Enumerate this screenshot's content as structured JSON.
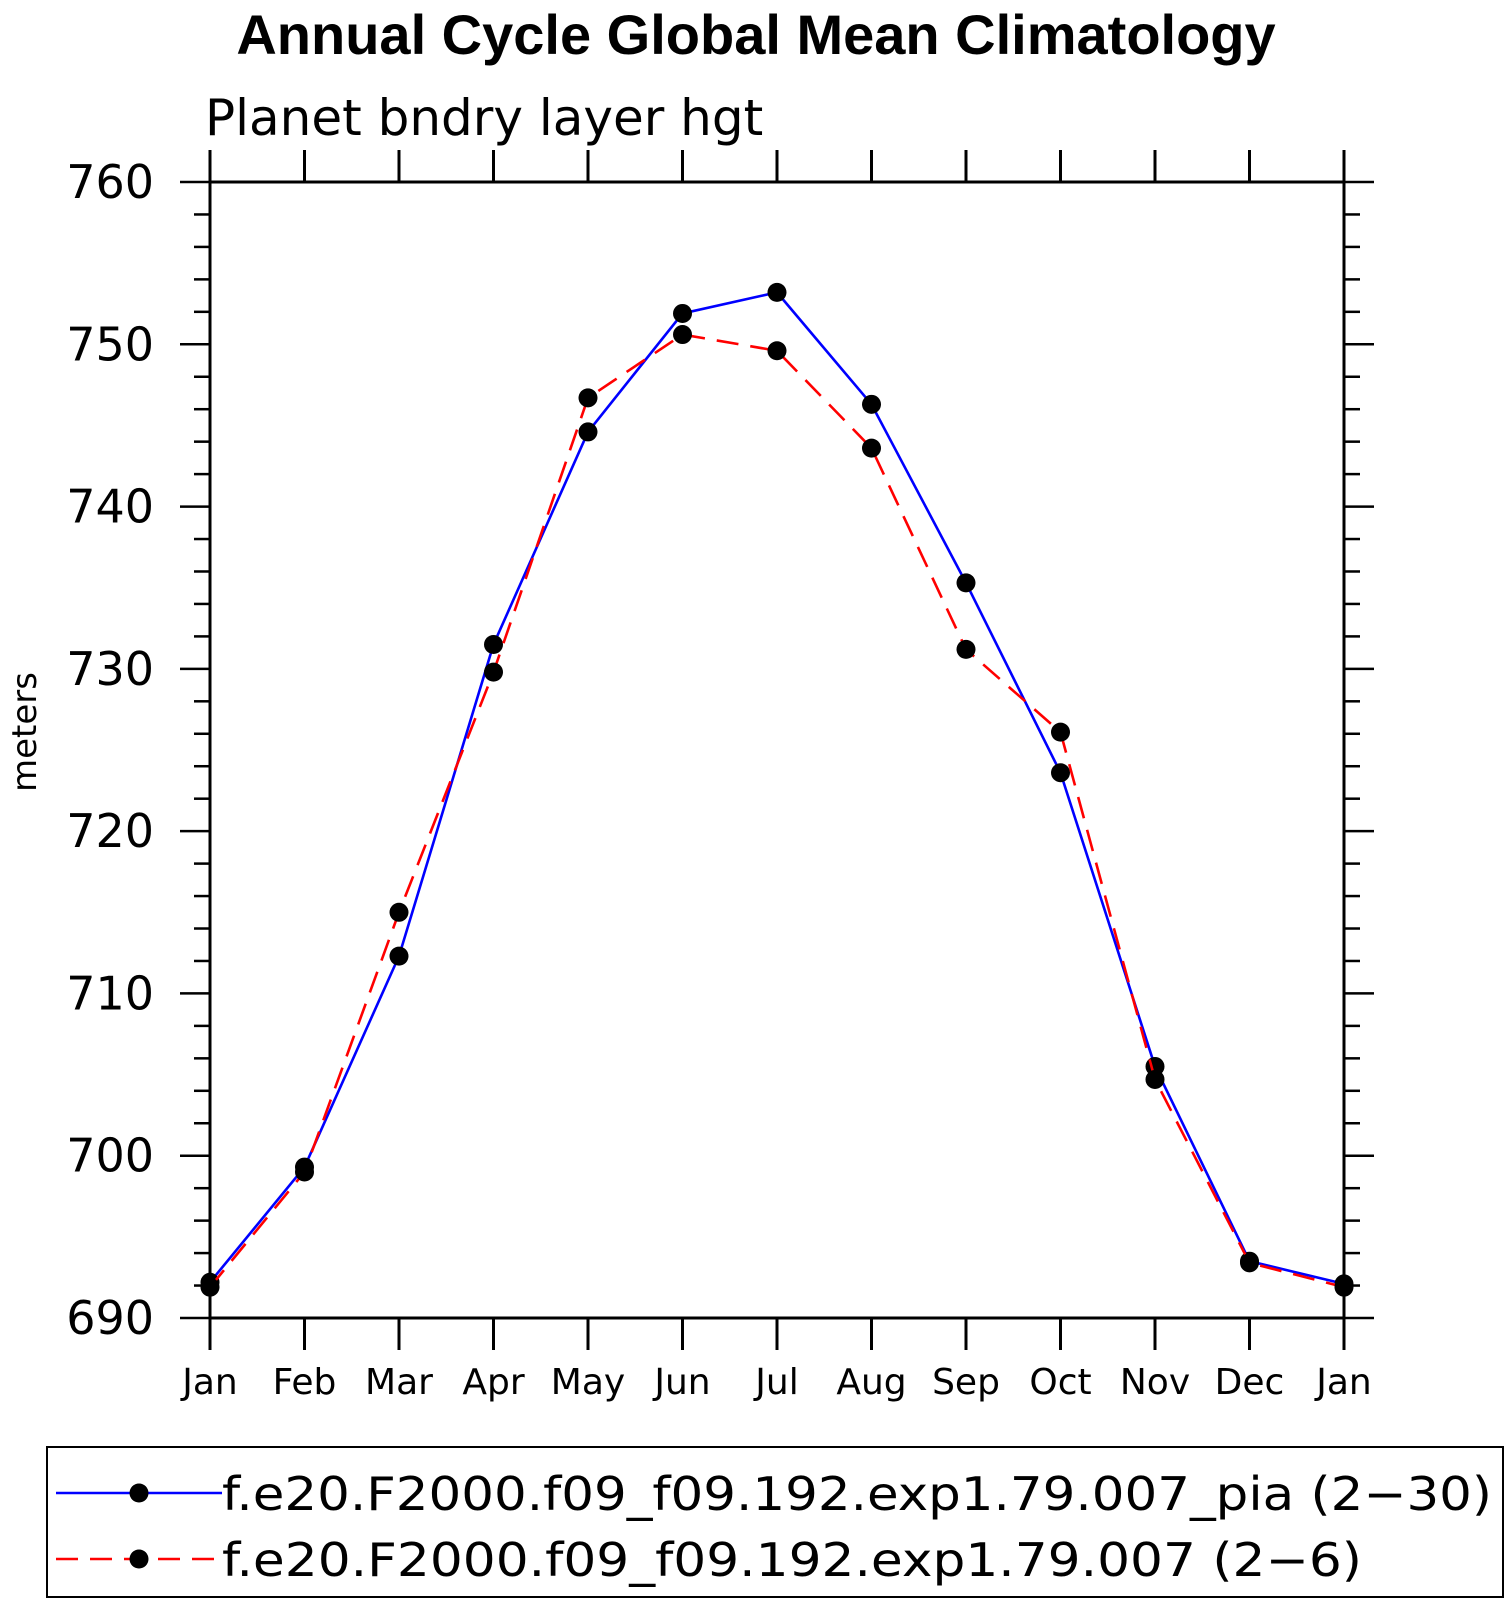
{
  "chart_data": {
    "type": "line",
    "title": "Annual Cycle Global Mean Climatology",
    "subtitle": "Planet bndry layer hgt",
    "xlabel": "",
    "ylabel": "meters",
    "categories": [
      "Jan",
      "Feb",
      "Mar",
      "Apr",
      "May",
      "Jun",
      "Jul",
      "Aug",
      "Sep",
      "Oct",
      "Nov",
      "Dec",
      "Jan"
    ],
    "ylim": [
      690,
      760
    ],
    "yticks": [
      690,
      700,
      710,
      720,
      730,
      740,
      750,
      760
    ],
    "grid": false,
    "legend_position": "bottom",
    "series": [
      {
        "name": "f.e20.F2000.f09_f09.192.exp1.79.007_pia (2−30)",
        "color": "#0000ff",
        "dash": "solid",
        "marker": "circle",
        "values": [
          692.2,
          699.3,
          712.3,
          731.5,
          744.6,
          751.9,
          753.2,
          746.3,
          735.3,
          723.6,
          705.5,
          693.5,
          692.1
        ]
      },
      {
        "name": "f.e20.F2000.f09_f09.192.exp1.79.007 (2−6)",
        "color": "#ff0000",
        "dash": "dashed",
        "marker": "circle",
        "values": [
          691.9,
          699.0,
          715.0,
          729.8,
          746.7,
          750.6,
          749.6,
          743.6,
          731.2,
          726.1,
          704.7,
          693.4,
          691.9
        ]
      }
    ]
  }
}
